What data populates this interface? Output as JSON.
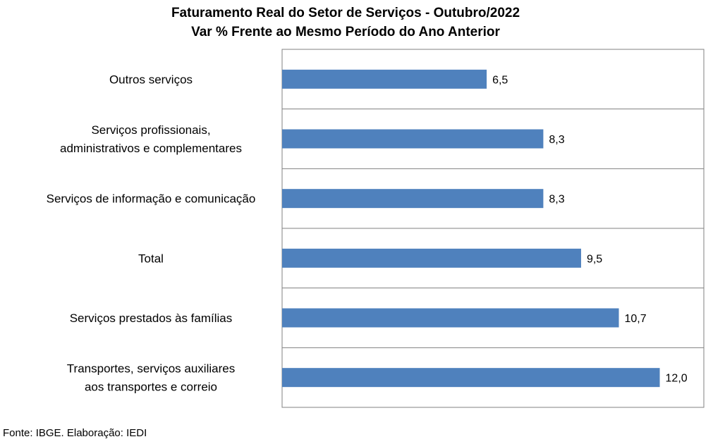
{
  "chart_data": {
    "type": "bar",
    "orientation": "horizontal",
    "title": "Faturamento Real do Setor de Serviços - Outubro/2022",
    "subtitle": "Var % Frente ao Mesmo Período do Ano Anterior",
    "categories": [
      [
        "Outros serviços"
      ],
      [
        "Serviços profissionais,",
        "administrativos e complementares"
      ],
      [
        "Serviços de informação e comunicação"
      ],
      [
        "Total"
      ],
      [
        "Serviços prestados às famílias"
      ],
      [
        "Transportes, serviços auxiliares",
        "aos transportes e correio"
      ]
    ],
    "values": [
      6.5,
      8.3,
      8.3,
      9.5,
      10.7,
      12.0
    ],
    "value_labels": [
      "6,5",
      "8,3",
      "8,3",
      "9,5",
      "10,7",
      "12,0"
    ],
    "xlim": [
      0,
      13.4
    ],
    "grid": "horizontal separators between categories",
    "legend": "none"
  },
  "colors": {
    "bar": "#4f81bd",
    "grid": "#808080"
  },
  "source": "Fonte: IBGE. Elaboração: IEDI"
}
